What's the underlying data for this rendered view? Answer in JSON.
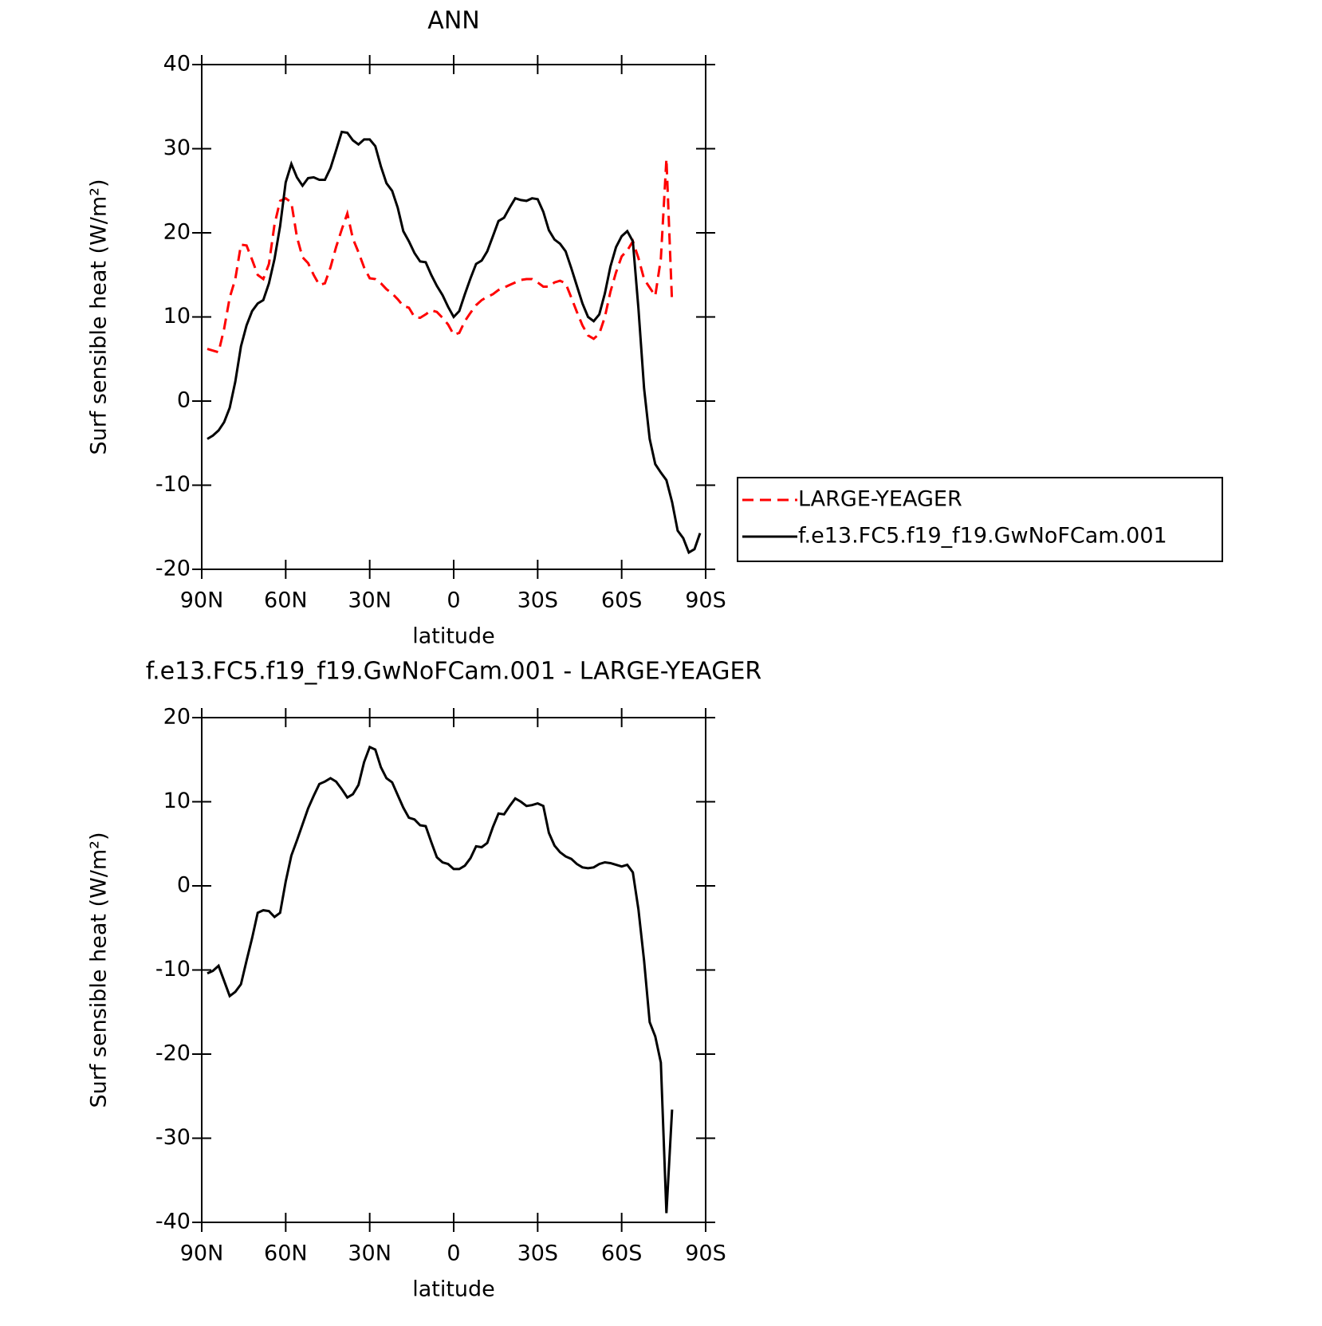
{
  "chart_data": [
    {
      "type": "line",
      "title": "ANN",
      "x_label": "latitude",
      "y_label": "Surf sensible heat (W/m²)",
      "xlim": [
        90,
        -90
      ],
      "ylim": [
        -20,
        40
      ],
      "xticks": [
        {
          "value": 90,
          "label": "90N"
        },
        {
          "value": 60,
          "label": "60N"
        },
        {
          "value": 30,
          "label": "30N"
        },
        0,
        {
          "value": -30,
          "label": "30S"
        },
        {
          "value": -60,
          "label": "60S"
        },
        {
          "value": -90,
          "label": "90S"
        }
      ],
      "yticks": [
        -20,
        -10,
        0,
        10,
        20,
        30,
        40
      ],
      "grid": false,
      "legend": "right",
      "x": [
        88,
        86,
        84,
        82,
        80,
        78,
        76,
        74,
        72,
        70,
        68,
        66,
        64,
        62,
        60,
        58,
        56,
        54,
        52,
        50,
        48,
        46,
        44,
        42,
        40,
        38,
        36,
        34,
        32,
        30,
        28,
        26,
        24,
        22,
        20,
        18,
        16,
        14,
        12,
        10,
        8,
        6,
        4,
        2,
        0,
        -2,
        -4,
        -6,
        -8,
        -10,
        -12,
        -14,
        -16,
        -18,
        -20,
        -22,
        -24,
        -26,
        -28,
        -30,
        -32,
        -34,
        -36,
        -38,
        -40,
        -42,
        -44,
        -46,
        -48,
        -50,
        -52,
        -54,
        -56,
        -58,
        -60,
        -62,
        -64,
        -66,
        -68,
        -70,
        -72,
        -74,
        -76,
        -78,
        -80,
        -82,
        -84,
        -86,
        -88
      ],
      "series": [
        {
          "name": "LARGE-YEAGER",
          "color": "#ff0000",
          "linestyle": "dashed",
          "values": [
            6.2,
            6.0,
            5.8,
            8.6,
            12.3,
            14.5,
            18.6,
            18.5,
            16.8,
            15.0,
            14.5,
            16.3,
            21.0,
            23.8,
            24.1,
            23.6,
            19.5,
            17.1,
            16.4,
            15.0,
            13.8,
            14.0,
            15.9,
            18.3,
            20.4,
            22.3,
            19.3,
            17.7,
            15.9,
            14.6,
            14.5,
            14.0,
            13.3,
            12.8,
            12.1,
            11.3,
            11.1,
            10.0,
            9.9,
            10.3,
            10.8,
            10.6,
            9.9,
            9.1,
            7.9,
            8.1,
            9.5,
            10.5,
            11.4,
            12.0,
            12.4,
            12.7,
            13.2,
            13.5,
            13.8,
            14.1,
            14.4,
            14.5,
            14.5,
            14.1,
            13.6,
            13.6,
            14.1,
            14.3,
            14.0,
            12.3,
            10.6,
            9.0,
            7.8,
            7.4,
            8.0,
            10.0,
            13.0,
            15.3,
            17.2,
            17.9,
            19.0,
            17.0,
            14.5,
            13.5,
            12.5,
            16.9,
            28.8,
            11.6,
            null,
            null,
            null,
            null,
            null
          ]
        },
        {
          "name": "f.e13.FC5.f19_f19.GwNoFCam.001",
          "color": "#000000",
          "linestyle": "solid",
          "values": [
            -4.5,
            -4.1,
            -3.5,
            -2.5,
            -0.8,
            2.3,
            6.5,
            9.0,
            10.7,
            11.6,
            12.0,
            14.0,
            16.9,
            20.8,
            26.0,
            28.2,
            26.6,
            25.6,
            26.5,
            26.6,
            26.3,
            26.3,
            27.7,
            29.8,
            32.0,
            31.9,
            31.0,
            30.5,
            31.1,
            31.1,
            30.3,
            27.9,
            25.9,
            25.0,
            23.0,
            20.2,
            19.0,
            17.6,
            16.6,
            16.5,
            15.0,
            13.7,
            12.6,
            11.2,
            10.0,
            10.7,
            12.7,
            14.6,
            16.3,
            16.7,
            17.8,
            19.6,
            21.4,
            21.8,
            23.0,
            24.1,
            23.9,
            23.8,
            24.1,
            24.0,
            22.5,
            20.3,
            19.2,
            18.7,
            17.8,
            15.8,
            13.7,
            11.6,
            10.0,
            9.5,
            10.3,
            12.8,
            16.0,
            18.3,
            19.6,
            20.2,
            19.0,
            11.0,
            1.5,
            -4.5,
            -7.5,
            -8.5,
            -9.4,
            -12.0,
            -15.4,
            -16.3,
            -18.0,
            -17.6,
            -15.7
          ]
        }
      ]
    },
    {
      "type": "line",
      "title": "f.e13.FC5.f19_f19.GwNoFCam.001 - LARGE-YEAGER",
      "x_label": "latitude",
      "y_label": "Surf sensible heat (W/m²)",
      "xlim": [
        90,
        -90
      ],
      "ylim": [
        -40,
        20
      ],
      "xticks": [
        {
          "value": 90,
          "label": "90N"
        },
        {
          "value": 60,
          "label": "60N"
        },
        {
          "value": 30,
          "label": "30N"
        },
        0,
        {
          "value": -30,
          "label": "30S"
        },
        {
          "value": -60,
          "label": "60S"
        },
        {
          "value": -90,
          "label": "90S"
        }
      ],
      "yticks": [
        -40,
        -30,
        -20,
        -10,
        0,
        10,
        20
      ],
      "grid": false,
      "x": [
        88,
        86,
        84,
        82,
        80,
        78,
        76,
        74,
        72,
        70,
        68,
        66,
        64,
        62,
        60,
        58,
        56,
        54,
        52,
        50,
        48,
        46,
        44,
        42,
        40,
        38,
        36,
        34,
        32,
        30,
        28,
        26,
        24,
        22,
        20,
        18,
        16,
        14,
        12,
        10,
        8,
        6,
        4,
        2,
        0,
        -2,
        -4,
        -6,
        -8,
        -10,
        -12,
        -14,
        -16,
        -18,
        -20,
        -22,
        -24,
        -26,
        -28,
        -30,
        -32,
        -34,
        -36,
        -38,
        -40,
        -42,
        -44,
        -46,
        -48,
        -50,
        -52,
        -54,
        -56,
        -58,
        -60,
        -62,
        -64,
        -66,
        -68,
        -70,
        -72,
        -74,
        -76,
        -78,
        -80,
        -82,
        -84,
        -86,
        -88
      ],
      "series": [
        {
          "color": "#000000",
          "linestyle": "solid",
          "values": [
            -10.4,
            -10.1,
            -9.5,
            -11.3,
            -13.1,
            -12.6,
            -11.7,
            -8.9,
            -6.2,
            -3.2,
            -2.9,
            -3.0,
            -3.7,
            -3.2,
            0.5,
            3.6,
            5.4,
            7.3,
            9.2,
            10.7,
            12.1,
            12.4,
            12.8,
            12.4,
            11.5,
            10.5,
            10.9,
            12.0,
            14.7,
            16.5,
            16.2,
            14.1,
            12.8,
            12.3,
            10.8,
            9.3,
            8.1,
            7.9,
            7.2,
            7.1,
            5.2,
            3.4,
            2.8,
            2.6,
            2.0,
            2.0,
            2.4,
            3.3,
            4.7,
            4.6,
            5.1,
            7.0,
            8.6,
            8.5,
            9.5,
            10.4,
            10.0,
            9.5,
            9.6,
            9.8,
            9.5,
            6.3,
            4.8,
            4.0,
            3.5,
            3.2,
            2.6,
            2.2,
            2.1,
            2.2,
            2.6,
            2.8,
            2.7,
            2.5,
            2.3,
            2.5,
            1.6,
            -2.8,
            -8.9,
            -16.2,
            -17.9,
            -21.0,
            -38.9,
            -26.6,
            null,
            null,
            null,
            null,
            null
          ]
        }
      ]
    }
  ]
}
